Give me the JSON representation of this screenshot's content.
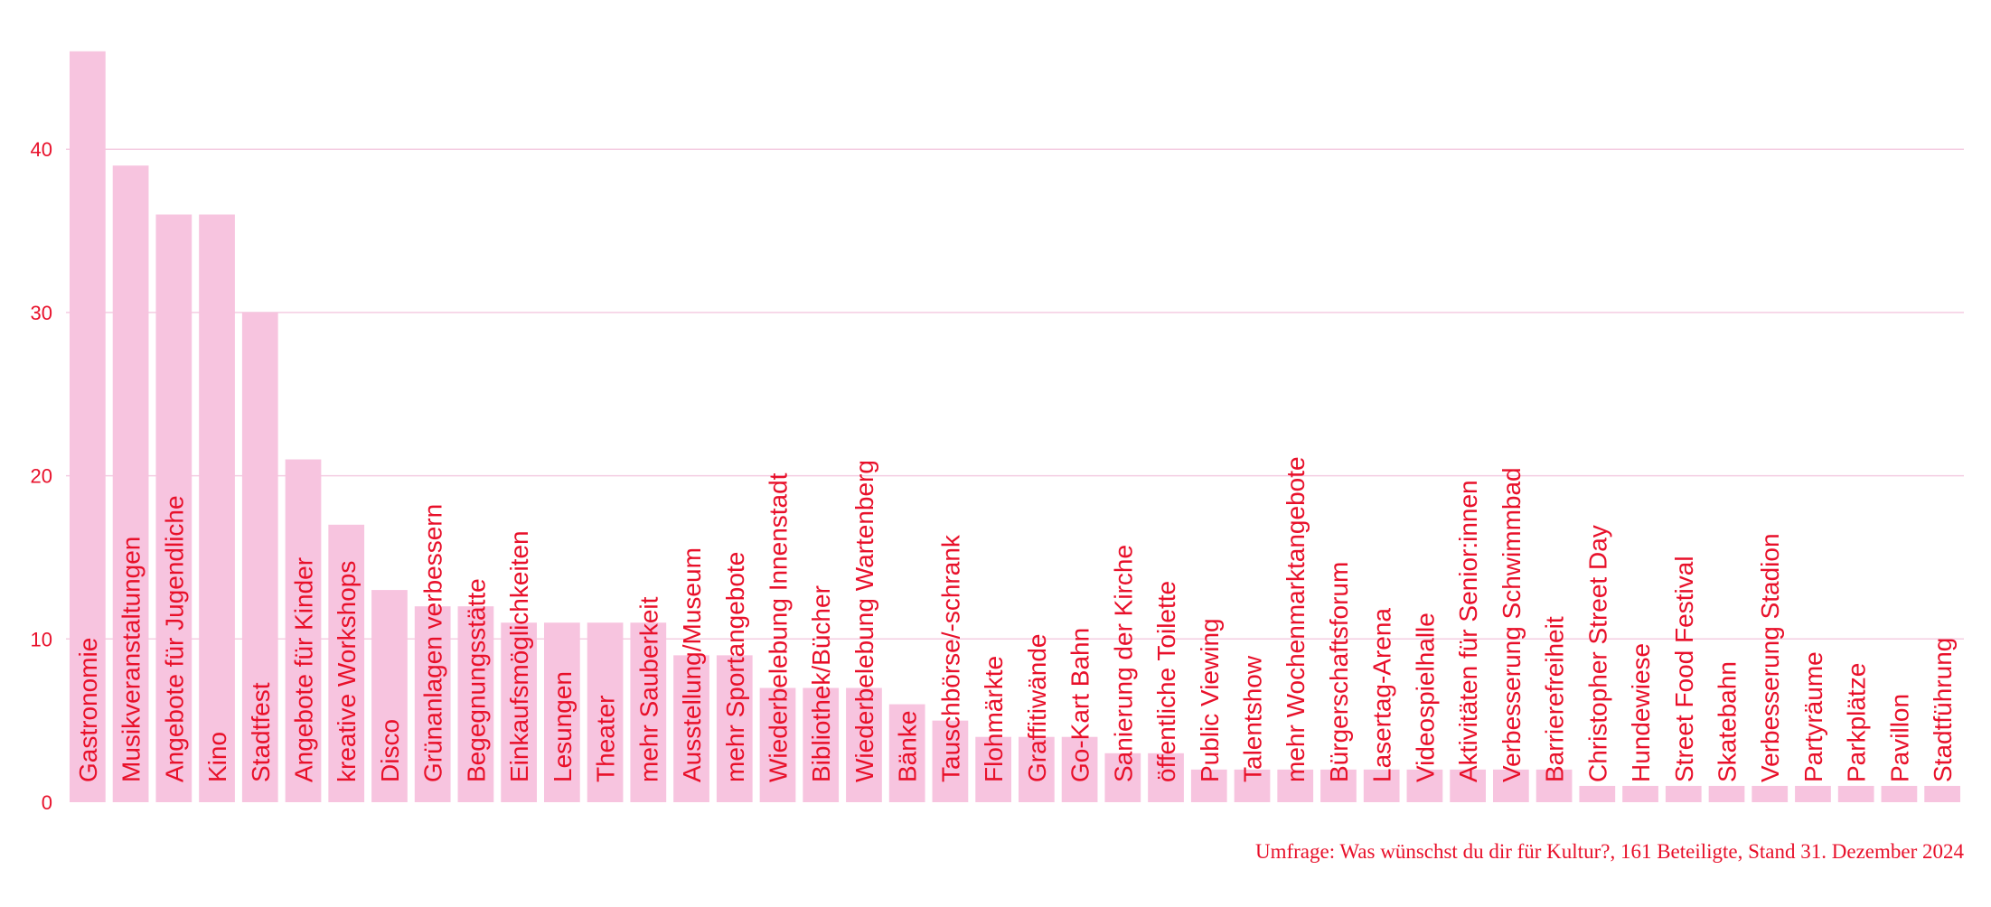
{
  "colors": {
    "bar": "#f7c4df",
    "text": "#e8102a",
    "grid": "#f4cde2"
  },
  "chart_data": {
    "type": "bar",
    "categories": [
      "Gastronomie",
      "Musikveranstaltungen",
      "Angebote für Jugendliche",
      "Kino",
      "Stadtfest",
      "Angebote für Kinder",
      "kreative Workshops",
      "Disco",
      "Grünanlagen verbessern",
      "Begegnungsstätte",
      "Einkaufsmöglichkeiten",
      "Lesungen",
      "Theater",
      "mehr Sauberkeit",
      "Ausstellung/Museum",
      "mehr Sportangebote",
      "Wiederbelebung Innenstadt",
      "Bibliothek/Bücher",
      "Wiederbelebung Wartenberg",
      "Bänke",
      "Tauschbörse/-schrank",
      "Flohmärkte",
      "Graffitiwände",
      "Go-Kart Bahn",
      "Sanierung der Kirche",
      "öffentliche Toilette",
      "Public Viewing",
      "Talentshow",
      "mehr Wochenmarktangebote",
      "Bürgerschaftsforum",
      "Lasertag-Arena",
      "Videospielhalle",
      "Aktivitäten für Senior:innen",
      "Verbesserung Schwimmbad",
      "Barrierefreiheit",
      "Christopher Street Day",
      "Hundewiese",
      "Street Food Festival",
      "Skatebahn",
      "Verbesserung Stadion",
      "Partyräume",
      "Parkplätze",
      "Pavillon",
      "Stadtführung"
    ],
    "values": [
      46,
      39,
      36,
      36,
      30,
      21,
      17,
      13,
      12,
      12,
      11,
      11,
      11,
      11,
      9,
      9,
      7,
      7,
      7,
      6,
      5,
      4,
      4,
      4,
      3,
      3,
      2,
      2,
      2,
      2,
      2,
      2,
      2,
      2,
      2,
      1,
      1,
      1,
      1,
      1,
      1,
      1,
      1,
      1
    ],
    "yticks": [
      0,
      10,
      20,
      30,
      40
    ],
    "ylim": [
      0,
      46
    ],
    "grid": true,
    "title": "",
    "xlabel": "",
    "ylabel": "",
    "caption": "Umfrage: Was wünschst du dir für Kultur?, 161 Beteiligte, Stand 31. Dezember 2024"
  }
}
